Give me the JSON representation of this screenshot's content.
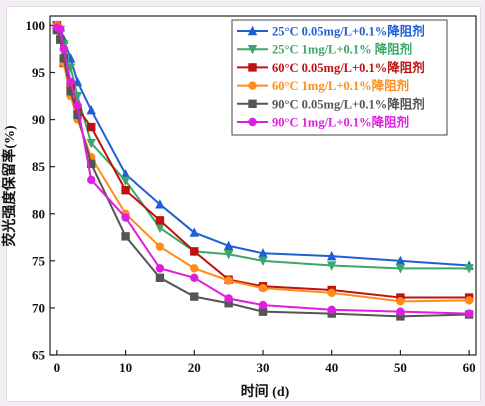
{
  "chart_data": {
    "type": "line",
    "xlabel": "时间 (d)",
    "ylabel": "荧光强度保留率(%)",
    "xlim": [
      -1,
      61
    ],
    "ylim": [
      65,
      101
    ],
    "xticks": [
      0,
      10,
      20,
      30,
      40,
      50,
      60
    ],
    "yticks": [
      65,
      70,
      75,
      80,
      85,
      90,
      95,
      100
    ],
    "grid": false,
    "legend_position": "top-right",
    "x": [
      0,
      0.5,
      1,
      2,
      3,
      5,
      10,
      15,
      20,
      25,
      30,
      40,
      50,
      60
    ],
    "series": [
      {
        "name": "25°C 0.05mg/L+0.1%降阻剂",
        "color": "#1f5fd6",
        "marker": "triangle-up",
        "values": [
          100,
          99.8,
          98.5,
          96.5,
          94,
          91,
          84.2,
          81,
          78,
          76.6,
          75.8,
          75.5,
          75,
          74.5
        ]
      },
      {
        "name": "25°C 1mg/L+0.1% 降阻剂",
        "color": "#3aa86b",
        "marker": "triangle-down",
        "values": [
          100,
          99.5,
          98,
          95.5,
          92.5,
          87.5,
          83.5,
          78.5,
          76,
          75.7,
          75,
          74.5,
          74.2,
          74.2
        ]
      },
      {
        "name": "60°C 0.05mg/L+0.1%降阻剂",
        "color": "#c01010",
        "marker": "square",
        "values": [
          100,
          98.5,
          96,
          93.5,
          91.2,
          89.2,
          82.5,
          79.3,
          76,
          73,
          72.3,
          71.9,
          71.1,
          71.1
        ]
      },
      {
        "name": "60°C 1mg/L+0.1%降阻剂",
        "color": "#ff8c1a",
        "marker": "circle",
        "values": [
          100,
          98.5,
          96,
          92.5,
          90,
          86,
          80,
          76.5,
          74.2,
          72.9,
          72.1,
          71.6,
          70.7,
          70.8
        ]
      },
      {
        "name": "90°C 0.05mg/L+0.1%降阻剂",
        "color": "#555555",
        "marker": "square",
        "values": [
          99.5,
          98.5,
          96.5,
          93,
          90.5,
          85.3,
          77.6,
          73.2,
          71.2,
          70.5,
          69.6,
          69.4,
          69.1,
          69.3
        ]
      },
      {
        "name": "90°C 1mg/L+0.1%降阻剂",
        "color": "#e01ee0",
        "marker": "circle",
        "values": [
          99.8,
          99.6,
          97.5,
          94,
          91.5,
          83.6,
          79.6,
          74.2,
          73.2,
          71,
          70.3,
          69.8,
          69.6,
          69.4
        ]
      }
    ]
  }
}
